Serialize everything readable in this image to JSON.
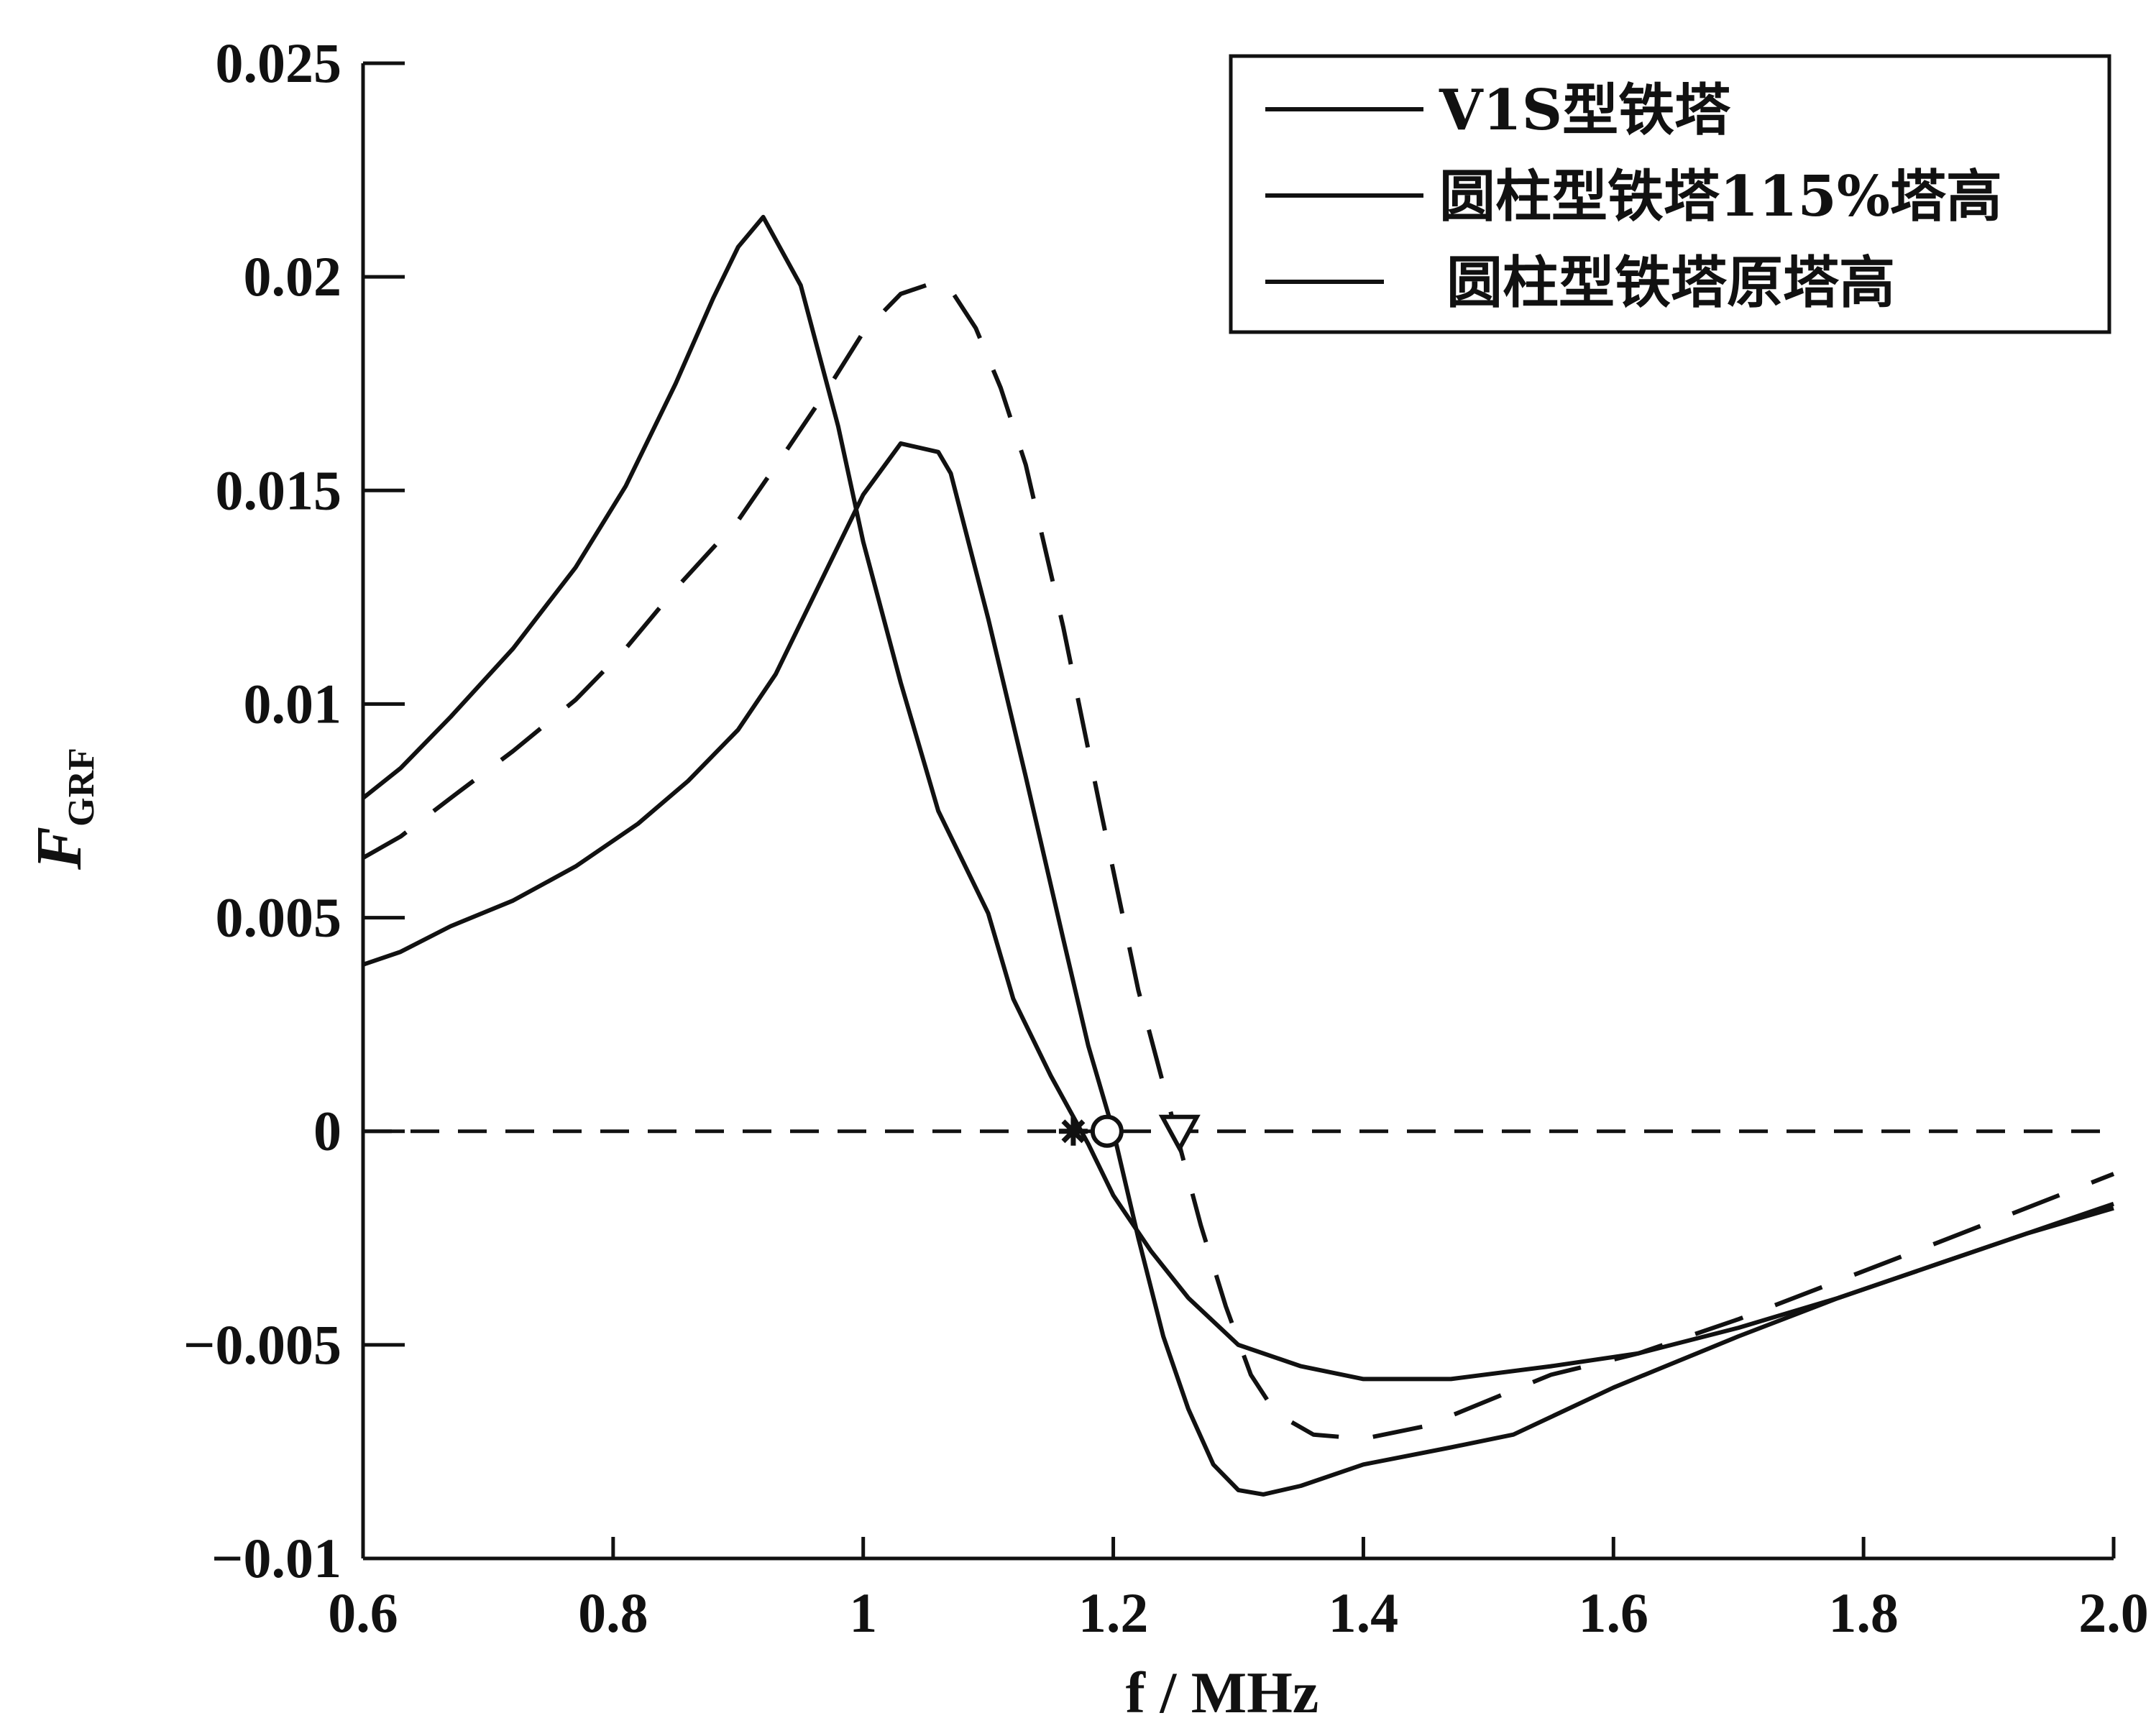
{
  "chart_data": {
    "type": "line",
    "xlabel": "f / MHz",
    "ylabel_main": "F",
    "ylabel_sub": "GRF",
    "xlim": [
      0.6,
      2.0
    ],
    "ylim": [
      -0.01,
      0.025
    ],
    "xticks": [
      0.6,
      0.8,
      1.0,
      1.2,
      1.4,
      1.6,
      1.8,
      2.0
    ],
    "xtick_labels": [
      "0.6",
      "0.8",
      "1",
      "1.2",
      "1.4",
      "1.6",
      "1.8",
      "2.0"
    ],
    "yticks": [
      -0.01,
      -0.005,
      0,
      0.005,
      0.01,
      0.015,
      0.02,
      0.025
    ],
    "ytick_labels": [
      "−0.01",
      "−0.005",
      "0",
      "0.005",
      "0.01",
      "0.015",
      "0.02",
      "0.025"
    ],
    "legend_position": "top-right",
    "zero_line": "dashed",
    "series": [
      {
        "name": "V1S型铁塔",
        "style": "solid",
        "x": [
          0.6,
          0.63,
          0.67,
          0.72,
          0.77,
          0.81,
          0.85,
          0.88,
          0.9,
          0.92,
          0.95,
          0.98,
          1.0,
          1.03,
          1.06,
          1.1,
          1.12,
          1.15,
          1.18,
          1.2,
          1.23,
          1.26,
          1.3,
          1.35,
          1.4,
          1.47,
          1.55,
          1.62,
          1.7,
          1.78,
          1.86,
          1.93,
          2.0
        ],
        "y": [
          0.0078,
          0.0085,
          0.0097,
          0.0113,
          0.0132,
          0.0151,
          0.0175,
          0.0195,
          0.0207,
          0.0214,
          0.0198,
          0.0165,
          0.0138,
          0.0105,
          0.0075,
          0.0051,
          0.0031,
          0.0013,
          -0.0003,
          -0.0015,
          -0.0028,
          -0.0039,
          -0.005,
          -0.0055,
          -0.0058,
          -0.0058,
          -0.0055,
          -0.0052,
          -0.0046,
          -0.0039,
          -0.0031,
          -0.0024,
          -0.0018
        ]
      },
      {
        "name": "圆柱型铁塔115%塔高",
        "style": "solid",
        "x": [
          0.6,
          0.63,
          0.67,
          0.72,
          0.77,
          0.82,
          0.86,
          0.9,
          0.93,
          0.96,
          1.0,
          1.03,
          1.06,
          1.07,
          1.1,
          1.13,
          1.16,
          1.18,
          1.2,
          1.22,
          1.24,
          1.26,
          1.28,
          1.3,
          1.32,
          1.35,
          1.4,
          1.47,
          1.52,
          1.6,
          1.7,
          1.78,
          1.86,
          1.93,
          2.0
        ],
        "y": [
          0.0039,
          0.0042,
          0.0048,
          0.0054,
          0.0062,
          0.0072,
          0.0082,
          0.0094,
          0.0107,
          0.0125,
          0.0149,
          0.0161,
          0.0159,
          0.0154,
          0.012,
          0.0083,
          0.0045,
          0.002,
          0.0,
          -0.0025,
          -0.0048,
          -0.0065,
          -0.0078,
          -0.0084,
          -0.0085,
          -0.0083,
          -0.0078,
          -0.0074,
          -0.0071,
          -0.006,
          -0.0048,
          -0.0039,
          -0.0031,
          -0.0024,
          -0.0017
        ]
      },
      {
        "name": "圆柱型铁塔原塔高",
        "style": "dashed",
        "x": [
          0.6,
          0.63,
          0.67,
          0.72,
          0.77,
          0.81,
          0.85,
          0.9,
          0.94,
          0.97,
          1.0,
          1.03,
          1.06,
          1.07,
          1.09,
          1.11,
          1.13,
          1.16,
          1.19,
          1.22,
          1.25,
          1.27,
          1.29,
          1.31,
          1.33,
          1.36,
          1.4,
          1.45,
          1.5,
          1.55,
          1.62,
          1.7,
          1.78,
          1.86,
          1.93,
          2.0
        ],
        "y": [
          0.0064,
          0.0069,
          0.0078,
          0.0089,
          0.0101,
          0.0113,
          0.0127,
          0.0143,
          0.016,
          0.0173,
          0.0187,
          0.0196,
          0.0199,
          0.0197,
          0.0188,
          0.0174,
          0.0156,
          0.0118,
          0.0075,
          0.0033,
          0.0,
          -0.0022,
          -0.0041,
          -0.0057,
          -0.0066,
          -0.0071,
          -0.0072,
          -0.0069,
          -0.0063,
          -0.0057,
          -0.0052,
          -0.0044,
          -0.0035,
          -0.0026,
          -0.0018,
          -0.001
        ]
      }
    ],
    "markers": [
      {
        "shape": "asterisk",
        "x": 1.168,
        "y": 0.0
      },
      {
        "shape": "circle",
        "x": 1.195,
        "y": 0.0
      },
      {
        "shape": "triangle-down",
        "x": 1.253,
        "y": 0.0
      }
    ]
  }
}
